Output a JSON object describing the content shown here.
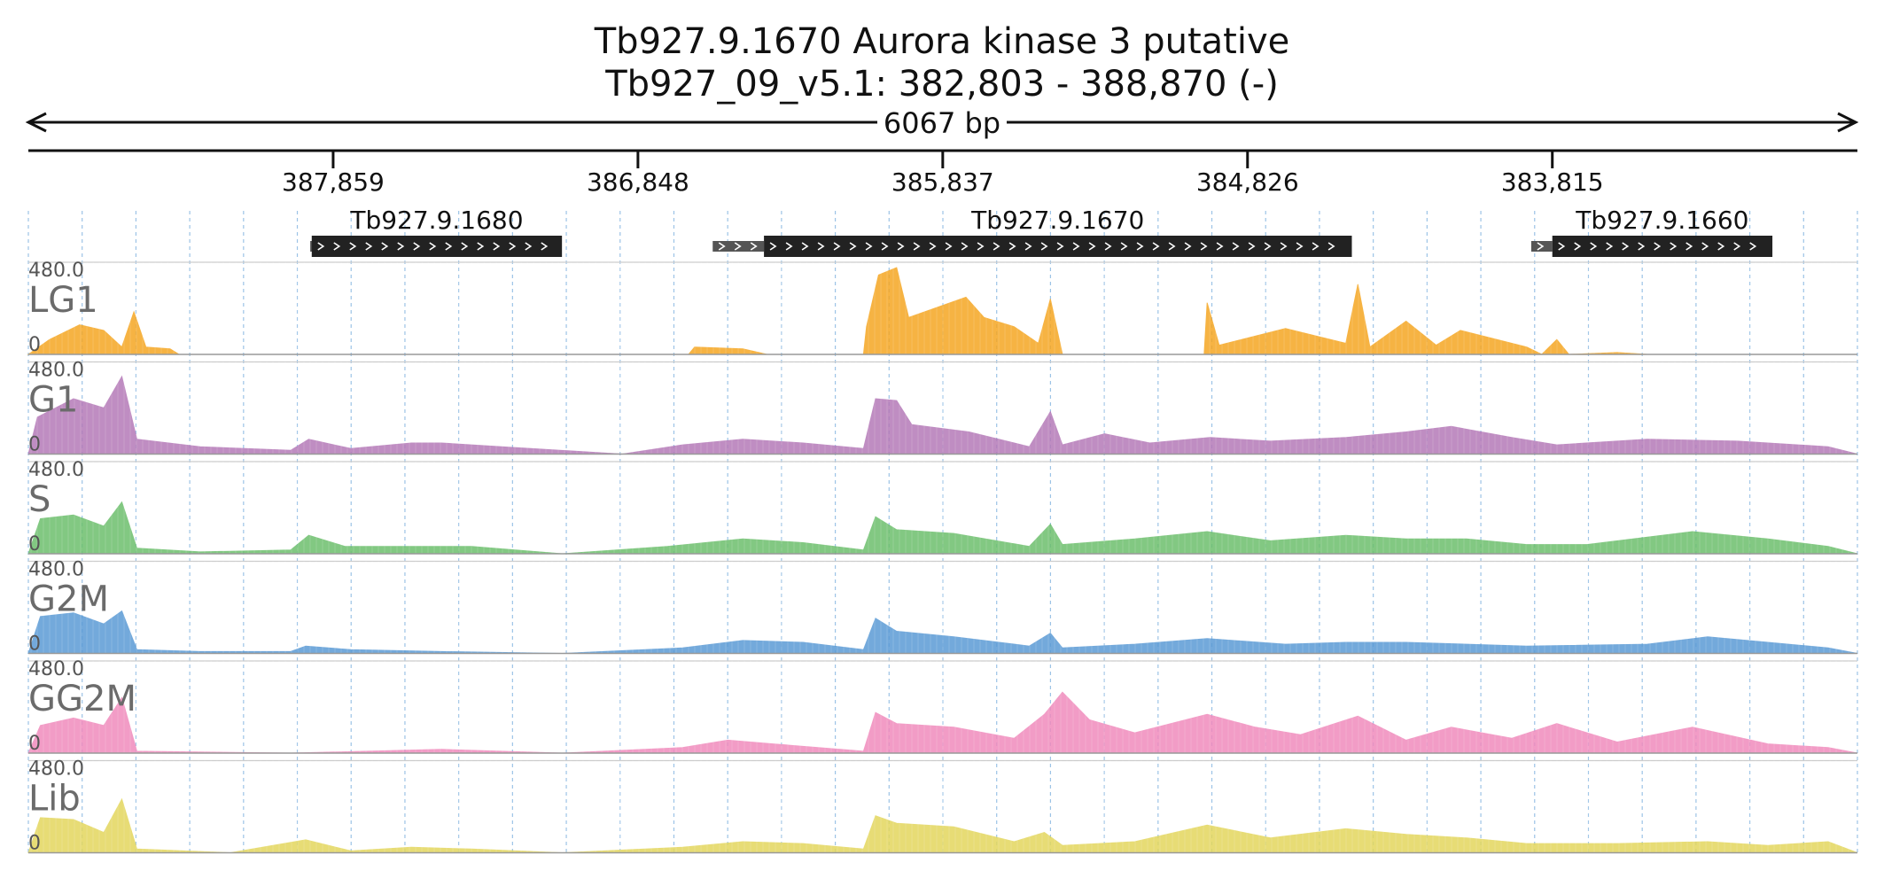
{
  "header": {
    "title_line1": "Tb927.9.1670  Aurora kinase 3  putative",
    "title_line2": "Tb927_09_v5.1: 382,803 - 388,870 (-)"
  },
  "ruler": {
    "span_label": "6067 bp",
    "start": 388870,
    "end": 382803,
    "ticks": [
      {
        "pos": 387859,
        "label": "387,859"
      },
      {
        "pos": 386848,
        "label": "386,848"
      },
      {
        "pos": 385837,
        "label": "385,837"
      },
      {
        "pos": 384826,
        "label": "384,826"
      },
      {
        "pos": 383815,
        "label": "383,815"
      }
    ]
  },
  "genes": [
    {
      "name": "Tb927.9.1680",
      "start": 387930,
      "end": 387100,
      "utr_start": 387935,
      "utr_end": 387925
    },
    {
      "name": "Tb927.9.1670",
      "start": 386430,
      "end": 384480,
      "utr_start": 386600,
      "utr_end": 386430
    },
    {
      "name": "Tb927.9.1660",
      "start": 383815,
      "end": 383085,
      "utr_start": 383885,
      "utr_end": 383815
    }
  ],
  "chart_data": {
    "type": "area",
    "genomic_range": [
      388870,
      382803
    ],
    "axis_direction": "reverse (minus strand)",
    "ylim": [
      0,
      480.0
    ],
    "grid": "dashed vertical lines",
    "tracks": [
      {
        "name": "LG1",
        "color": "#f5a623",
        "profile": [
          {
            "x": 388870,
            "y": 0
          },
          {
            "x": 388800,
            "y": 80
          },
          {
            "x": 388700,
            "y": 160
          },
          {
            "x": 388620,
            "y": 130
          },
          {
            "x": 388560,
            "y": 40
          },
          {
            "x": 388520,
            "y": 230
          },
          {
            "x": 388480,
            "y": 40
          },
          {
            "x": 388400,
            "y": 30
          },
          {
            "x": 388370,
            "y": 0
          },
          {
            "x": 386680,
            "y": 0
          },
          {
            "x": 386660,
            "y": 40
          },
          {
            "x": 386500,
            "y": 30
          },
          {
            "x": 386420,
            "y": 0
          },
          {
            "x": 386100,
            "y": 0
          },
          {
            "x": 386090,
            "y": 150
          },
          {
            "x": 386050,
            "y": 430
          },
          {
            "x": 385990,
            "y": 470
          },
          {
            "x": 385950,
            "y": 200
          },
          {
            "x": 385760,
            "y": 310
          },
          {
            "x": 385700,
            "y": 200
          },
          {
            "x": 385600,
            "y": 150
          },
          {
            "x": 385520,
            "y": 60
          },
          {
            "x": 385480,
            "y": 300
          },
          {
            "x": 385440,
            "y": 0
          },
          {
            "x": 384970,
            "y": 0
          },
          {
            "x": 384960,
            "y": 280
          },
          {
            "x": 384920,
            "y": 50
          },
          {
            "x": 384700,
            "y": 140
          },
          {
            "x": 384500,
            "y": 60
          },
          {
            "x": 384460,
            "y": 380
          },
          {
            "x": 384420,
            "y": 40
          },
          {
            "x": 384300,
            "y": 180
          },
          {
            "x": 384200,
            "y": 50
          },
          {
            "x": 384120,
            "y": 130
          },
          {
            "x": 383900,
            "y": 40
          },
          {
            "x": 383850,
            "y": 0
          },
          {
            "x": 383800,
            "y": 80
          },
          {
            "x": 383760,
            "y": 0
          },
          {
            "x": 383600,
            "y": 10
          },
          {
            "x": 383500,
            "y": 0
          },
          {
            "x": 382803,
            "y": 0
          }
        ]
      },
      {
        "name": "G1",
        "color": "#b57ab8",
        "profile": [
          {
            "x": 388870,
            "y": 0
          },
          {
            "x": 388840,
            "y": 200
          },
          {
            "x": 388720,
            "y": 300
          },
          {
            "x": 388620,
            "y": 250
          },
          {
            "x": 388560,
            "y": 420
          },
          {
            "x": 388510,
            "y": 80
          },
          {
            "x": 388300,
            "y": 40
          },
          {
            "x": 388000,
            "y": 20
          },
          {
            "x": 387940,
            "y": 80
          },
          {
            "x": 387800,
            "y": 30
          },
          {
            "x": 387600,
            "y": 60
          },
          {
            "x": 387500,
            "y": 60
          },
          {
            "x": 387300,
            "y": 40
          },
          {
            "x": 386900,
            "y": 0
          },
          {
            "x": 386700,
            "y": 50
          },
          {
            "x": 386500,
            "y": 80
          },
          {
            "x": 386300,
            "y": 60
          },
          {
            "x": 386100,
            "y": 30
          },
          {
            "x": 386060,
            "y": 300
          },
          {
            "x": 385990,
            "y": 290
          },
          {
            "x": 385940,
            "y": 160
          },
          {
            "x": 385750,
            "y": 120
          },
          {
            "x": 385550,
            "y": 40
          },
          {
            "x": 385480,
            "y": 230
          },
          {
            "x": 385440,
            "y": 50
          },
          {
            "x": 385300,
            "y": 110
          },
          {
            "x": 385150,
            "y": 60
          },
          {
            "x": 384950,
            "y": 90
          },
          {
            "x": 384750,
            "y": 70
          },
          {
            "x": 384500,
            "y": 90
          },
          {
            "x": 384300,
            "y": 120
          },
          {
            "x": 384150,
            "y": 150
          },
          {
            "x": 383950,
            "y": 90
          },
          {
            "x": 383800,
            "y": 50
          },
          {
            "x": 383500,
            "y": 80
          },
          {
            "x": 383200,
            "y": 70
          },
          {
            "x": 382900,
            "y": 40
          },
          {
            "x": 382803,
            "y": 0
          }
        ]
      },
      {
        "name": "S",
        "color": "#6dbf6d",
        "profile": [
          {
            "x": 388870,
            "y": 0
          },
          {
            "x": 388830,
            "y": 190
          },
          {
            "x": 388720,
            "y": 210
          },
          {
            "x": 388620,
            "y": 150
          },
          {
            "x": 388560,
            "y": 280
          },
          {
            "x": 388510,
            "y": 30
          },
          {
            "x": 388300,
            "y": 10
          },
          {
            "x": 388000,
            "y": 20
          },
          {
            "x": 387940,
            "y": 100
          },
          {
            "x": 387820,
            "y": 40
          },
          {
            "x": 387600,
            "y": 40
          },
          {
            "x": 387400,
            "y": 40
          },
          {
            "x": 387100,
            "y": 0
          },
          {
            "x": 386750,
            "y": 40
          },
          {
            "x": 386500,
            "y": 80
          },
          {
            "x": 386300,
            "y": 60
          },
          {
            "x": 386100,
            "y": 20
          },
          {
            "x": 386060,
            "y": 200
          },
          {
            "x": 385990,
            "y": 130
          },
          {
            "x": 385800,
            "y": 110
          },
          {
            "x": 385550,
            "y": 40
          },
          {
            "x": 385480,
            "y": 160
          },
          {
            "x": 385440,
            "y": 50
          },
          {
            "x": 385200,
            "y": 80
          },
          {
            "x": 384960,
            "y": 120
          },
          {
            "x": 384750,
            "y": 70
          },
          {
            "x": 384500,
            "y": 100
          },
          {
            "x": 384300,
            "y": 80
          },
          {
            "x": 384100,
            "y": 80
          },
          {
            "x": 383900,
            "y": 50
          },
          {
            "x": 383700,
            "y": 50
          },
          {
            "x": 383350,
            "y": 120
          },
          {
            "x": 383100,
            "y": 80
          },
          {
            "x": 382900,
            "y": 40
          },
          {
            "x": 382803,
            "y": 0
          }
        ]
      },
      {
        "name": "G2M",
        "color": "#5b9bd5",
        "profile": [
          {
            "x": 388870,
            "y": 0
          },
          {
            "x": 388830,
            "y": 200
          },
          {
            "x": 388720,
            "y": 220
          },
          {
            "x": 388620,
            "y": 160
          },
          {
            "x": 388560,
            "y": 230
          },
          {
            "x": 388510,
            "y": 20
          },
          {
            "x": 388300,
            "y": 10
          },
          {
            "x": 388000,
            "y": 10
          },
          {
            "x": 387950,
            "y": 40
          },
          {
            "x": 387800,
            "y": 20
          },
          {
            "x": 387500,
            "y": 10
          },
          {
            "x": 387100,
            "y": 0
          },
          {
            "x": 386700,
            "y": 30
          },
          {
            "x": 386500,
            "y": 70
          },
          {
            "x": 386300,
            "y": 60
          },
          {
            "x": 386100,
            "y": 20
          },
          {
            "x": 386060,
            "y": 190
          },
          {
            "x": 385990,
            "y": 120
          },
          {
            "x": 385800,
            "y": 90
          },
          {
            "x": 385550,
            "y": 40
          },
          {
            "x": 385480,
            "y": 110
          },
          {
            "x": 385440,
            "y": 30
          },
          {
            "x": 385200,
            "y": 50
          },
          {
            "x": 384960,
            "y": 80
          },
          {
            "x": 384700,
            "y": 50
          },
          {
            "x": 384500,
            "y": 60
          },
          {
            "x": 384300,
            "y": 60
          },
          {
            "x": 383900,
            "y": 40
          },
          {
            "x": 383500,
            "y": 50
          },
          {
            "x": 383300,
            "y": 90
          },
          {
            "x": 383100,
            "y": 60
          },
          {
            "x": 382900,
            "y": 30
          },
          {
            "x": 382803,
            "y": 0
          }
        ]
      },
      {
        "name": "GG2M",
        "color": "#f08bbd",
        "profile": [
          {
            "x": 388870,
            "y": 0
          },
          {
            "x": 388830,
            "y": 150
          },
          {
            "x": 388720,
            "y": 190
          },
          {
            "x": 388620,
            "y": 150
          },
          {
            "x": 388560,
            "y": 300
          },
          {
            "x": 388510,
            "y": 10
          },
          {
            "x": 388000,
            "y": 0
          },
          {
            "x": 387500,
            "y": 20
          },
          {
            "x": 387100,
            "y": 0
          },
          {
            "x": 386700,
            "y": 30
          },
          {
            "x": 386550,
            "y": 70
          },
          {
            "x": 386400,
            "y": 50
          },
          {
            "x": 386100,
            "y": 10
          },
          {
            "x": 386060,
            "y": 220
          },
          {
            "x": 385990,
            "y": 160
          },
          {
            "x": 385800,
            "y": 140
          },
          {
            "x": 385600,
            "y": 80
          },
          {
            "x": 385500,
            "y": 210
          },
          {
            "x": 385440,
            "y": 330
          },
          {
            "x": 385350,
            "y": 180
          },
          {
            "x": 385200,
            "y": 110
          },
          {
            "x": 384960,
            "y": 210
          },
          {
            "x": 384800,
            "y": 140
          },
          {
            "x": 384650,
            "y": 100
          },
          {
            "x": 384460,
            "y": 200
          },
          {
            "x": 384300,
            "y": 70
          },
          {
            "x": 384150,
            "y": 140
          },
          {
            "x": 383950,
            "y": 80
          },
          {
            "x": 383800,
            "y": 160
          },
          {
            "x": 383600,
            "y": 60
          },
          {
            "x": 383350,
            "y": 140
          },
          {
            "x": 383100,
            "y": 50
          },
          {
            "x": 382900,
            "y": 30
          },
          {
            "x": 382803,
            "y": 0
          }
        ]
      },
      {
        "name": "Lib",
        "color": "#e3d75e",
        "profile": [
          {
            "x": 388870,
            "y": 0
          },
          {
            "x": 388830,
            "y": 190
          },
          {
            "x": 388720,
            "y": 180
          },
          {
            "x": 388620,
            "y": 110
          },
          {
            "x": 388560,
            "y": 290
          },
          {
            "x": 388510,
            "y": 20
          },
          {
            "x": 388200,
            "y": 0
          },
          {
            "x": 387950,
            "y": 70
          },
          {
            "x": 387800,
            "y": 10
          },
          {
            "x": 387600,
            "y": 30
          },
          {
            "x": 387400,
            "y": 20
          },
          {
            "x": 387100,
            "y": 0
          },
          {
            "x": 386700,
            "y": 30
          },
          {
            "x": 386500,
            "y": 60
          },
          {
            "x": 386300,
            "y": 50
          },
          {
            "x": 386100,
            "y": 20
          },
          {
            "x": 386060,
            "y": 200
          },
          {
            "x": 385990,
            "y": 160
          },
          {
            "x": 385800,
            "y": 140
          },
          {
            "x": 385600,
            "y": 60
          },
          {
            "x": 385500,
            "y": 110
          },
          {
            "x": 385440,
            "y": 40
          },
          {
            "x": 385200,
            "y": 60
          },
          {
            "x": 384960,
            "y": 150
          },
          {
            "x": 384750,
            "y": 80
          },
          {
            "x": 384500,
            "y": 130
          },
          {
            "x": 384300,
            "y": 100
          },
          {
            "x": 384100,
            "y": 80
          },
          {
            "x": 383900,
            "y": 50
          },
          {
            "x": 383600,
            "y": 50
          },
          {
            "x": 383300,
            "y": 60
          },
          {
            "x": 383100,
            "y": 40
          },
          {
            "x": 382900,
            "y": 60
          },
          {
            "x": 382803,
            "y": 0
          }
        ]
      }
    ],
    "max_label": "480.0",
    "zero_label": "0"
  }
}
